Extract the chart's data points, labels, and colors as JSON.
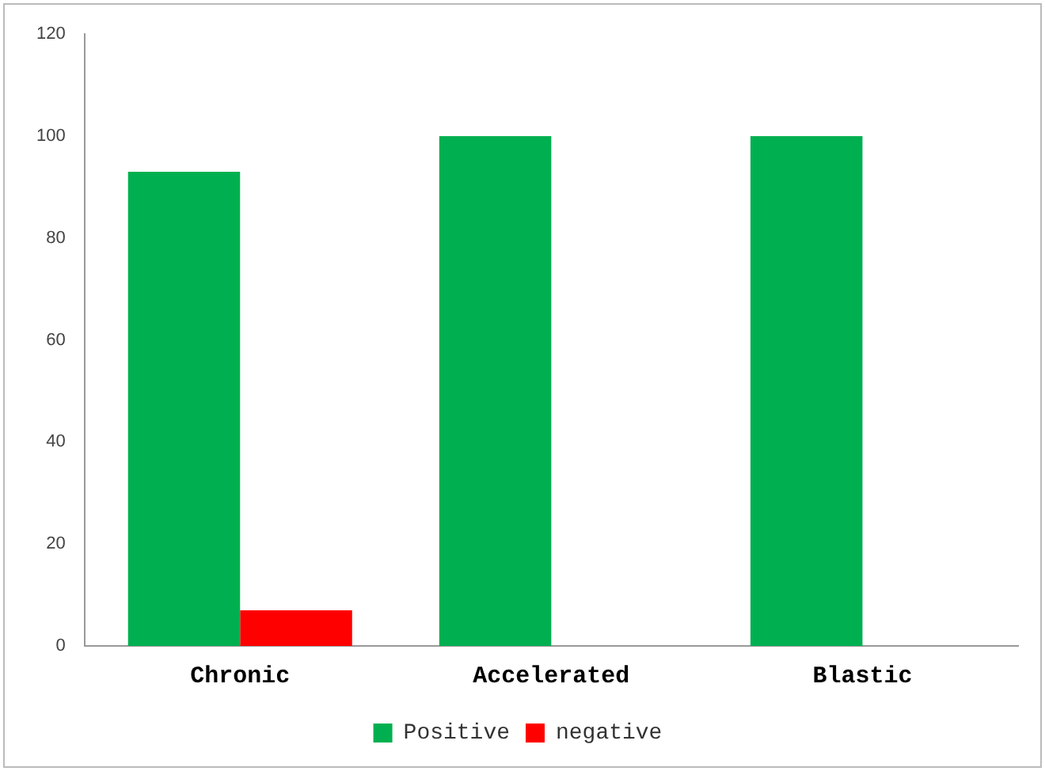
{
  "chart_data": {
    "type": "bar",
    "categories": [
      "Chronic",
      "Accelerated",
      "Blastic"
    ],
    "series": [
      {
        "name": "Positive",
        "color": "#00b050",
        "values": [
          93,
          100,
          100
        ]
      },
      {
        "name": "negative",
        "color": "#ff0000",
        "values": [
          7,
          0,
          0
        ]
      }
    ],
    "ylim": [
      0,
      120
    ],
    "yticks": [
      0,
      20,
      40,
      60,
      80,
      100,
      120
    ],
    "grid": false,
    "legend": "bottom"
  }
}
